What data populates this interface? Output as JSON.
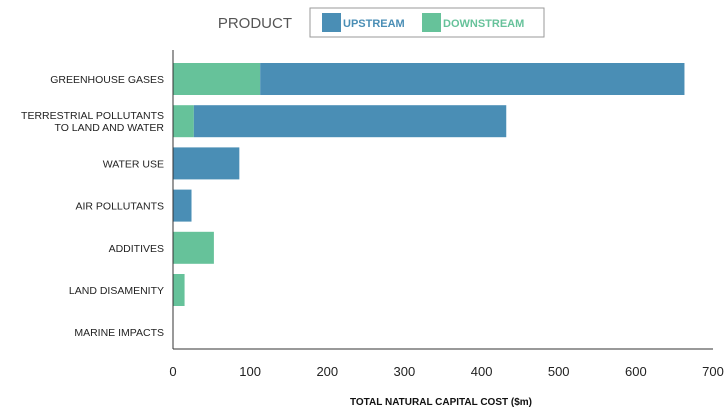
{
  "chart_data": {
    "type": "bar",
    "orientation": "horizontal",
    "stacked": true,
    "title": "",
    "xlabel": "TOTAL NATURAL CAPITAL COST ($m)",
    "ylabel": "",
    "xlim": [
      0,
      700
    ],
    "xticks": [
      0,
      100,
      200,
      300,
      400,
      500,
      600,
      700
    ],
    "grid": false,
    "legend": {
      "title": "PRODUCT",
      "placement": "top-center"
    },
    "categories": [
      "GREENHOUSE GASES",
      "TERRESTRIAL POLLUTANTS\nTO LAND AND WATER",
      "WATER USE",
      "AIR POLLUTANTS",
      "ADDITIVES",
      "LAND DISAMENITY",
      "MARINE IMPACTS"
    ],
    "series": [
      {
        "name": "DOWNSTREAM",
        "color": "#66c29a",
        "values": [
          113,
          27,
          0,
          0,
          53,
          15,
          0
        ]
      },
      {
        "name": "UPSTREAM",
        "color": "#4a8eb5",
        "values": [
          550,
          405,
          86,
          24,
          0,
          0,
          0
        ]
      }
    ],
    "legend_order": [
      "UPSTREAM",
      "DOWNSTREAM"
    ]
  }
}
